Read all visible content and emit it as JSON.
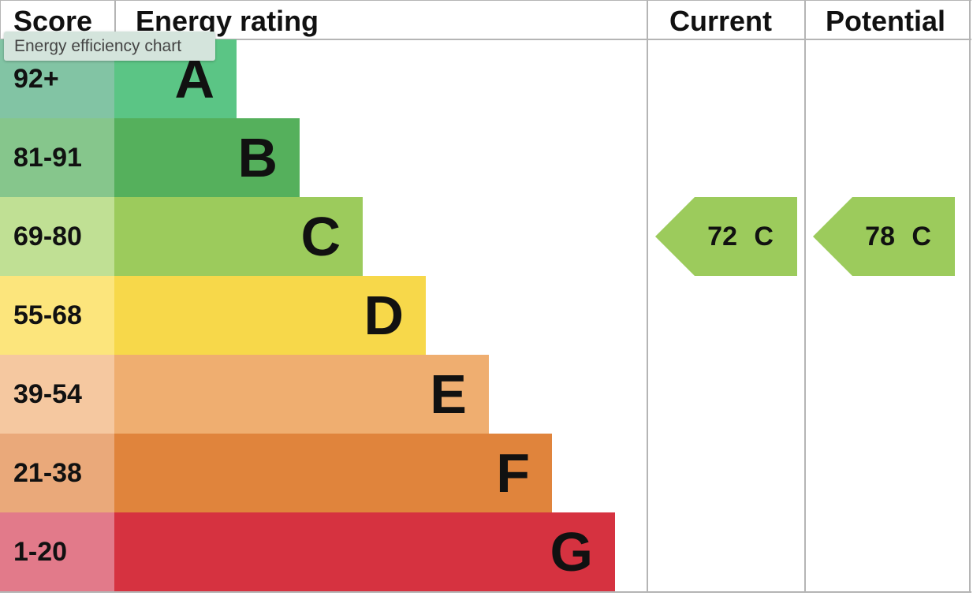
{
  "headers": {
    "score": "Score",
    "rating": "Energy rating",
    "current": "Current",
    "potential": "Potential"
  },
  "tooltip": "Energy efficiency chart",
  "chart_data": {
    "type": "bar",
    "bands": [
      {
        "score": "92+",
        "letter": "A",
        "color": "#5bc585",
        "tint": "#82c4a4"
      },
      {
        "score": "81-91",
        "letter": "B",
        "color": "#55b05c",
        "tint": "#86c68c"
      },
      {
        "score": "69-80",
        "letter": "C",
        "color": "#9ccb5c",
        "tint": "#c0e094"
      },
      {
        "score": "55-68",
        "letter": "D",
        "color": "#f7d84a",
        "tint": "#fce57c"
      },
      {
        "score": "39-54",
        "letter": "E",
        "color": "#efae70",
        "tint": "#f5c8a0"
      },
      {
        "score": "21-38",
        "letter": "F",
        "color": "#e0843c",
        "tint": "#eaa97a"
      },
      {
        "score": "1-20",
        "letter": "G",
        "color": "#d63240",
        "tint": "#e27a8a"
      }
    ],
    "current": {
      "value": 72,
      "band": "C",
      "label": "72 C",
      "color": "#9ccb5c"
    },
    "potential": {
      "value": 78,
      "band": "C",
      "label": "78 C",
      "color": "#9ccb5c"
    }
  }
}
